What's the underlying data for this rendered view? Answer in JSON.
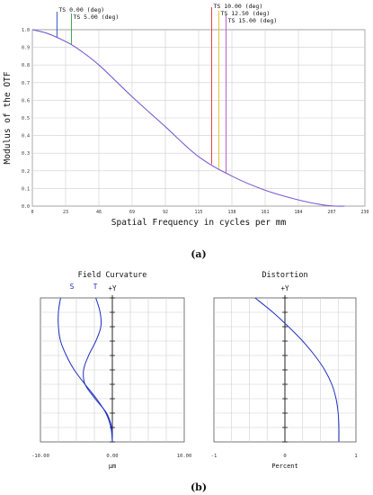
{
  "panel_labels": {
    "a": "(a)",
    "b": "(b)"
  },
  "chart_data": [
    {
      "id": "mtf",
      "type": "line",
      "xlabel": "Spatial Frequency in cycles per mm",
      "ylabel": "Modulus of the OTF",
      "xlim": [
        0,
        230
      ],
      "ylim": [
        0,
        1
      ],
      "x_ticks": [
        "0",
        "23",
        "46",
        "69",
        "92",
        "115",
        "138",
        "161",
        "184",
        "207",
        "230"
      ],
      "y_ticks": [
        "0.0",
        "0.1",
        "0.2",
        "0.3",
        "0.4",
        "0.5",
        "0.6",
        "0.7",
        "0.8",
        "0.9",
        "1.0"
      ],
      "grid": true,
      "legend": [
        {
          "label": "TS 0.00 (deg)",
          "color": "#1f3fcf",
          "cutoff": 17
        },
        {
          "label": "TS 5.00 (deg)",
          "color": "#22a03c",
          "cutoff": 27
        },
        {
          "label": "TS 10.00 (deg)",
          "color": "#e03030",
          "cutoff": 124
        },
        {
          "label": "TS 12.50 (deg)",
          "color": "#e0c020",
          "cutoff": 129
        },
        {
          "label": "TS 15.00 (deg)",
          "color": "#b050c0",
          "cutoff": 134
        }
      ],
      "series": [
        {
          "color": "#7a5cd0",
          "x": [
            0,
            10,
            20,
            30,
            46,
            69,
            92,
            115,
            138,
            161,
            184,
            200,
            210,
            216
          ],
          "y": [
            1.0,
            0.98,
            0.945,
            0.9,
            0.8,
            0.62,
            0.45,
            0.28,
            0.17,
            0.09,
            0.035,
            0.008,
            0.0,
            0.0
          ]
        }
      ]
    },
    {
      "id": "field-curvature",
      "type": "line",
      "title": "Field Curvature",
      "xlabel": "µm",
      "ylabel": "+Y",
      "xlim": [
        -10,
        10
      ],
      "ylim": [
        0,
        1
      ],
      "x_ticks": [
        "-10.00",
        "0.00",
        "10.00"
      ],
      "grid": true,
      "legend": [
        "S",
        "T"
      ],
      "series": [
        {
          "name": "S",
          "color": "#2030c0",
          "y": [
            1.0,
            0.9,
            0.8,
            0.7,
            0.6,
            0.5,
            0.4,
            0.3,
            0.2,
            0.1,
            0.0
          ],
          "x": [
            -7.2,
            -7.5,
            -7.5,
            -7.2,
            -6.4,
            -5.3,
            -3.8,
            -2.2,
            -0.9,
            -0.2,
            0.0
          ]
        },
        {
          "name": "T",
          "color": "#2030c0",
          "y": [
            1.0,
            0.9,
            0.8,
            0.7,
            0.6,
            0.5,
            0.4,
            0.3,
            0.2,
            0.1,
            0.0
          ],
          "x": [
            -2.3,
            -1.7,
            -1.6,
            -2.3,
            -3.3,
            -4.0,
            -3.8,
            -2.4,
            -0.8,
            -0.1,
            0.0
          ]
        }
      ]
    },
    {
      "id": "distortion",
      "type": "line",
      "title": "Distortion",
      "xlabel": "Percent",
      "ylabel": "+Y",
      "xlim": [
        -1,
        1
      ],
      "ylim": [
        0,
        1
      ],
      "x_ticks": [
        "-1",
        "0",
        "1"
      ],
      "grid": true,
      "series": [
        {
          "color": "#2030c0",
          "y": [
            1.0,
            0.9,
            0.8,
            0.7,
            0.6,
            0.5,
            0.4,
            0.3,
            0.2,
            0.1,
            0.0
          ],
          "x": [
            -0.42,
            -0.17,
            0.05,
            0.25,
            0.42,
            0.56,
            0.66,
            0.72,
            0.75,
            0.76,
            0.76
          ]
        }
      ]
    }
  ]
}
